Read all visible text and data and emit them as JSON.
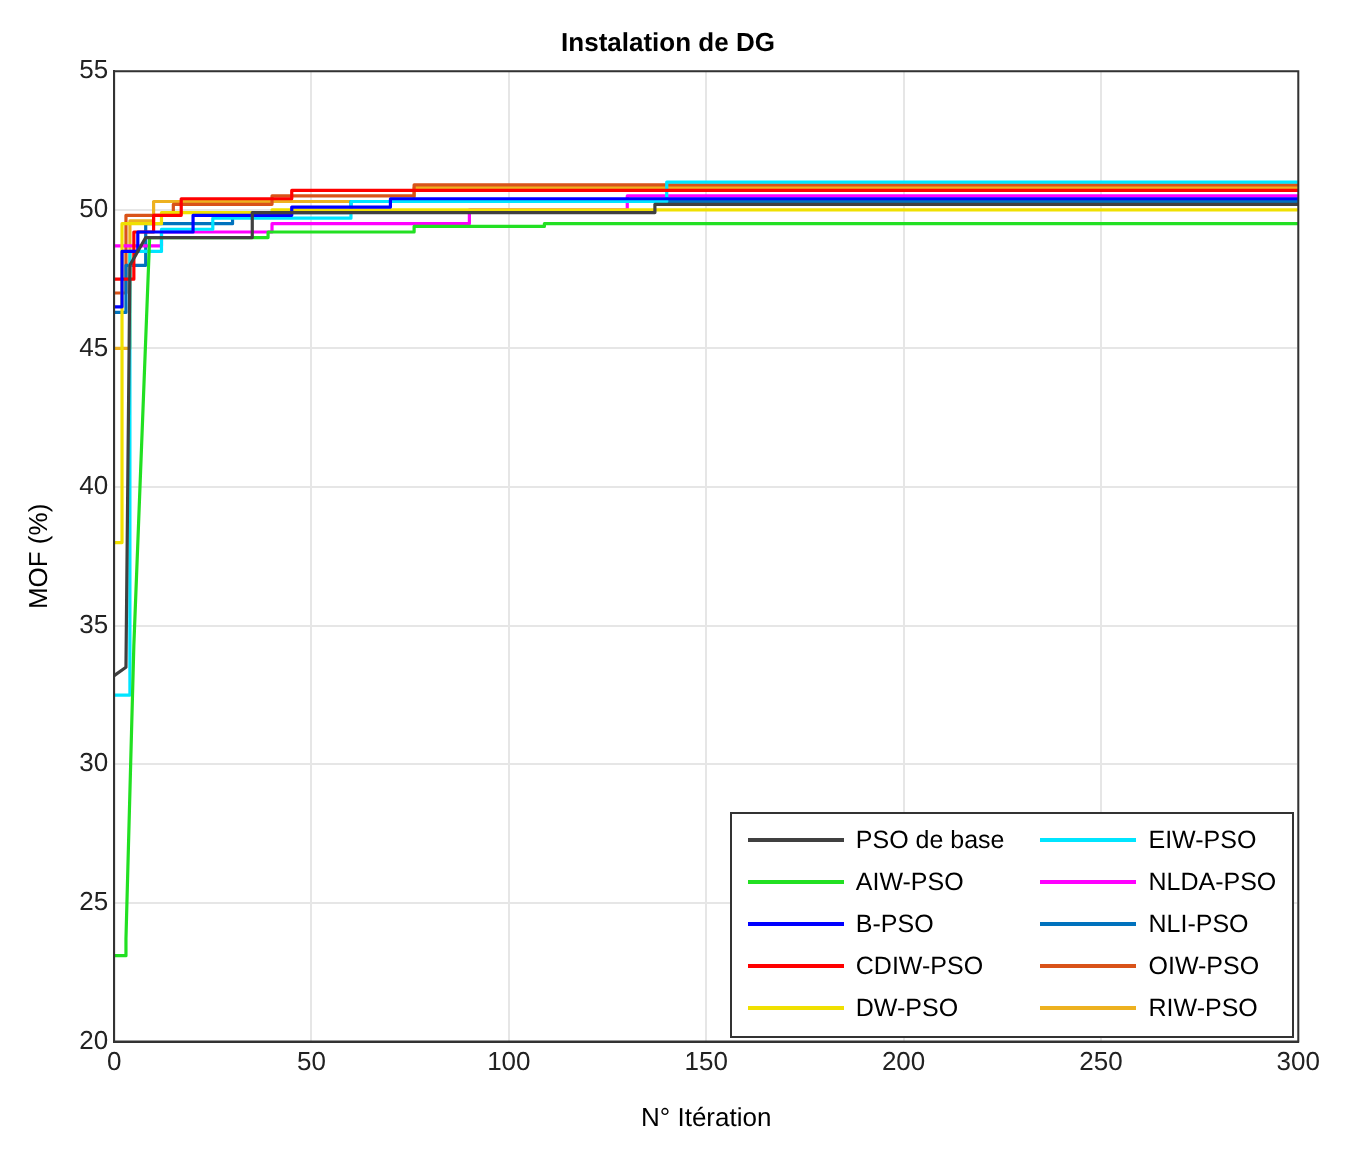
{
  "chart_data": {
    "type": "line",
    "title": "Instalation de DG",
    "xlabel": "N° Itération",
    "ylabel": "MOF (%)",
    "xlim": [
      0,
      300
    ],
    "xticks": [
      0,
      50,
      100,
      150,
      200,
      250,
      300
    ],
    "ylim": [
      20,
      55
    ],
    "yticks": [
      20,
      25,
      30,
      35,
      40,
      45,
      50,
      55
    ],
    "grid": true,
    "legend": "bottom right",
    "marker": "none",
    "line_style": "solid",
    "series": [
      {
        "name": "PSO de base",
        "color": "#404040",
        "x": [
          0,
          3,
          4,
          8,
          8,
          35,
          35,
          137,
          137,
          300
        ],
        "values": [
          33.2,
          33.5,
          48,
          49,
          49,
          49,
          49.9,
          49.9,
          50.2,
          50.2
        ]
      },
      {
        "name": "AIW-PSO",
        "color": "#22e022",
        "x": [
          0,
          3,
          3,
          5,
          9,
          39,
          39,
          76,
          76,
          109,
          109,
          300
        ],
        "values": [
          23.1,
          23.1,
          23.7,
          34.3,
          49,
          49,
          49.2,
          49.2,
          49.4,
          49.4,
          49.5,
          49.5
        ]
      },
      {
        "name": "B-PSO",
        "color": "#0000ff",
        "x": [
          0,
          2,
          2,
          6,
          6,
          20,
          20,
          45,
          45,
          70,
          70,
          300
        ],
        "values": [
          46.5,
          46.5,
          48.5,
          48.5,
          49.2,
          49.2,
          49.8,
          49.8,
          50.1,
          50.1,
          50.4,
          50.4
        ]
      },
      {
        "name": "CDIW-PSO",
        "color": "#ff0000",
        "x": [
          0,
          5,
          5,
          10,
          10,
          17,
          17,
          45,
          45,
          300
        ],
        "values": [
          47.5,
          47.5,
          49.2,
          49.2,
          49.8,
          49.8,
          50.4,
          50.4,
          50.7,
          50.7
        ]
      },
      {
        "name": "DW-PSO",
        "color": "#f0e000",
        "x": [
          0,
          2,
          2,
          12,
          12,
          40,
          40,
          300
        ],
        "values": [
          38,
          38,
          49.5,
          49.5,
          49.9,
          49.9,
          50,
          50
        ]
      },
      {
        "name": "EIW-PSO",
        "color": "#00e5ff",
        "x": [
          0,
          4,
          4,
          12,
          12,
          25,
          25,
          60,
          60,
          140,
          140,
          300
        ],
        "values": [
          32.5,
          32.5,
          48.5,
          48.5,
          49.3,
          49.3,
          49.7,
          49.7,
          50.3,
          50.3,
          51,
          51
        ]
      },
      {
        "name": "NLDA-PSO",
        "color": "#ff00ff",
        "x": [
          0,
          12,
          12,
          40,
          40,
          90,
          90,
          130,
          130,
          300
        ],
        "values": [
          48.7,
          48.7,
          49.2,
          49.2,
          49.5,
          49.5,
          50,
          50,
          50.5,
          50.5
        ]
      },
      {
        "name": "NLI-PSO",
        "color": "#0072bd",
        "x": [
          0,
          3,
          3,
          8,
          8,
          30,
          30,
          60,
          60,
          300
        ],
        "values": [
          46.3,
          46.3,
          48,
          48,
          49.5,
          49.5,
          49.9,
          49.9,
          50.3,
          50.3
        ]
      },
      {
        "name": "OIW-PSO",
        "color": "#d95319",
        "x": [
          0,
          3,
          3,
          15,
          15,
          40,
          40,
          76,
          76,
          300
        ],
        "values": [
          47,
          47,
          49.8,
          49.8,
          50.2,
          50.2,
          50.5,
          50.5,
          50.9,
          50.9
        ]
      },
      {
        "name": "RIW-PSO",
        "color": "#edb120",
        "x": [
          0,
          4,
          4,
          10,
          10,
          76,
          76,
          300
        ],
        "values": [
          45,
          45,
          49.6,
          49.6,
          50.3,
          50.3,
          50.8,
          50.8
        ]
      }
    ]
  }
}
